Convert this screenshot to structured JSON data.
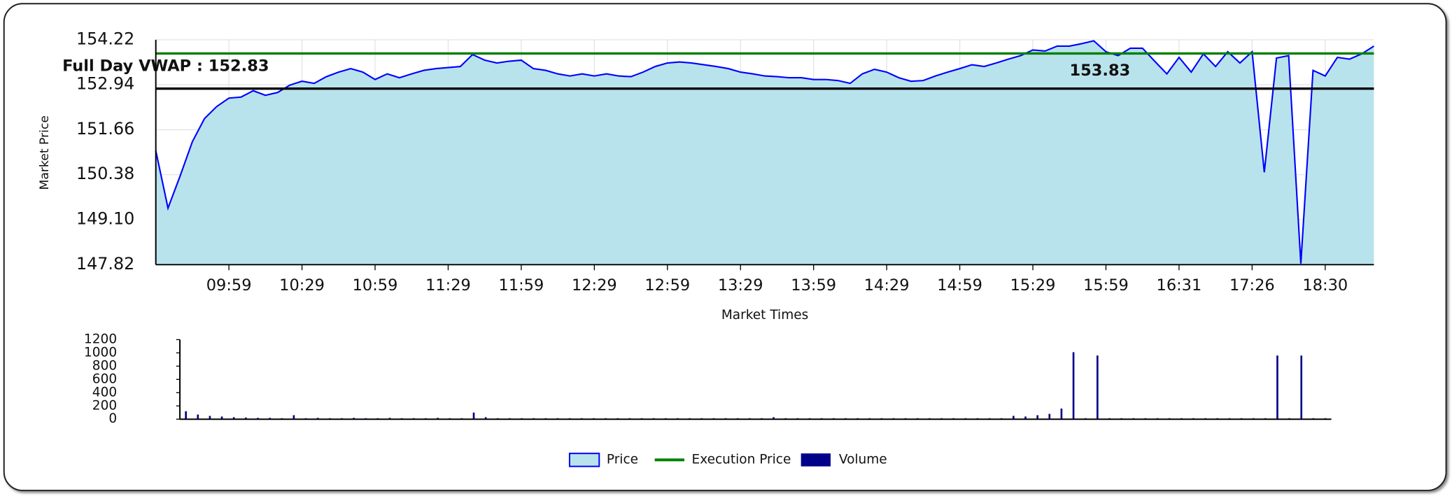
{
  "chart_data": [
    {
      "type": "area",
      "ylabel": "Market Price",
      "xlabel": "Market Times",
      "grid": true,
      "ylim": [
        147.82,
        154.22
      ],
      "yticks": [
        147.82,
        {
          "value": 149.1,
          "label": "149.10"
        },
        150.38,
        151.66,
        152.94,
        154.22
      ],
      "categories": [
        null,
        null,
        null,
        null,
        null,
        null,
        "09:59",
        null,
        null,
        null,
        null,
        null,
        "10:29",
        null,
        null,
        null,
        null,
        null,
        "10:59",
        null,
        null,
        null,
        null,
        null,
        "11:29",
        null,
        null,
        null,
        null,
        null,
        "11:59",
        null,
        null,
        null,
        null,
        null,
        "12:29",
        null,
        null,
        null,
        null,
        null,
        "12:59",
        null,
        null,
        null,
        null,
        null,
        "13:29",
        null,
        null,
        null,
        null,
        null,
        "13:59",
        null,
        null,
        null,
        null,
        null,
        "14:29",
        null,
        null,
        null,
        null,
        null,
        "14:59",
        null,
        null,
        null,
        null,
        null,
        "15:29",
        null,
        null,
        null,
        null,
        null,
        "15:59",
        null,
        null,
        null,
        null,
        null,
        "16:31",
        null,
        null,
        null,
        null,
        null,
        "17:26",
        null,
        null,
        null,
        null,
        null,
        "18:30",
        null,
        null,
        null,
        null
      ],
      "series": [
        {
          "name": "Price",
          "color": "#0000ff",
          "fill": "#b9e3ec",
          "values": [
            151.06,
            149.43,
            150.35,
            151.32,
            151.98,
            152.32,
            152.56,
            152.59,
            152.77,
            152.64,
            152.72,
            152.93,
            153.04,
            152.98,
            153.17,
            153.3,
            153.4,
            153.3,
            153.09,
            153.25,
            153.14,
            153.25,
            153.35,
            153.4,
            153.43,
            153.46,
            153.8,
            153.64,
            153.56,
            153.61,
            153.64,
            153.4,
            153.35,
            153.25,
            153.19,
            153.25,
            153.19,
            153.25,
            153.19,
            153.17,
            153.3,
            153.46,
            153.56,
            153.59,
            153.56,
            153.51,
            153.46,
            153.4,
            153.3,
            153.25,
            153.19,
            153.17,
            153.14,
            153.14,
            153.09,
            153.09,
            153.06,
            152.98,
            153.25,
            153.38,
            153.3,
            153.14,
            153.04,
            153.06,
            153.19,
            153.3,
            153.4,
            153.51,
            153.46,
            153.56,
            153.67,
            153.77,
            153.93,
            153.9,
            154.04,
            154.04,
            154.11,
            154.19,
            153.88,
            153.77,
            153.98,
            153.98,
            153.61,
            153.25,
            153.72,
            153.3,
            153.82,
            153.46,
            153.88,
            153.56,
            153.88,
            150.45,
            153.7,
            153.77,
            147.85,
            153.35,
            153.19,
            153.72,
            153.67,
            153.82,
            154.04
          ]
        }
      ],
      "execution_price": {
        "name": "Execution Price",
        "value": 153.83,
        "color": "#008000"
      },
      "vwap": {
        "label": "Full Day VWAP : 152.83",
        "value": 152.83,
        "color": "#000000"
      }
    },
    {
      "type": "bar",
      "ylim": [
        0,
        1200
      ],
      "yticks": [
        0,
        200,
        400,
        600,
        800,
        1000,
        1200
      ],
      "series": [
        {
          "name": "Volume",
          "color": "#00008b",
          "values": [
            120,
            70,
            50,
            40,
            30,
            25,
            20,
            20,
            15,
            60,
            15,
            20,
            15,
            15,
            20,
            15,
            15,
            20,
            15,
            15,
            15,
            20,
            15,
            15,
            100,
            30,
            15,
            15,
            15,
            15,
            15,
            15,
            15,
            15,
            15,
            15,
            15,
            15,
            15,
            15,
            15,
            15,
            15,
            15,
            15,
            15,
            15,
            15,
            15,
            30,
            15,
            15,
            15,
            15,
            15,
            15,
            15,
            15,
            15,
            15,
            15,
            15,
            15,
            15,
            15,
            15,
            15,
            15,
            15,
            50,
            40,
            60,
            80,
            160,
            1010,
            15,
            960,
            15,
            15,
            15,
            15,
            15,
            15,
            15,
            15,
            15,
            15,
            15,
            15,
            15,
            15,
            960,
            15,
            960,
            15,
            15
          ]
        }
      ]
    }
  ]
}
